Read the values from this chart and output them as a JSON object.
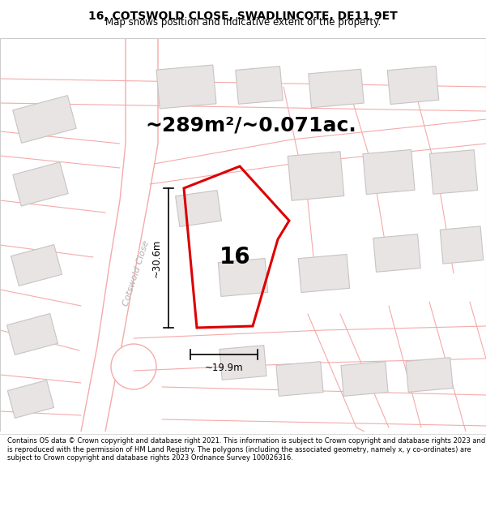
{
  "title": "16, COTSWOLD CLOSE, SWADLINCOTE, DE11 9ET",
  "subtitle": "Map shows position and indicative extent of the property.",
  "area_text": "~289m²/~0.071ac.",
  "dim_width": "~19.9m",
  "dim_height": "~30.6m",
  "plot_number": "16",
  "road_label": "Cotswold Close",
  "footer": "Contains OS data © Crown copyright and database right 2021. This information is subject to Crown copyright and database rights 2023 and is reproduced with the permission of HM Land Registry. The polygons (including the associated geometry, namely x, y co-ordinates) are subject to Crown copyright and database rights 2023 Ordnance Survey 100026316.",
  "bg_color": "#ffffff",
  "map_bg": "#ffffff",
  "plot_color": "#dd0000",
  "street_color": "#f5aaaa",
  "building_color": "#e8e4e4",
  "building_edge": "#c8c4c4",
  "title_fontsize": 10,
  "subtitle_fontsize": 8.5,
  "area_fontsize": 18,
  "plot_label_fontsize": 20,
  "dim_fontsize": 8.5,
  "road_label_color": "#b0b0b0",
  "road_label_fontsize": 8,
  "footer_fontsize": 6.0
}
